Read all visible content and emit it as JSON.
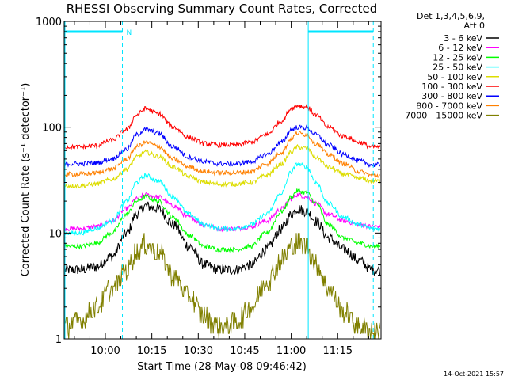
{
  "chart_data": {
    "type": "line",
    "title": "RHESSI Observing Summary Count Rates, Corrected",
    "xlabel": "Start Time (28-May-08 09:46:42)",
    "ylabel": "Corrected Count Rate (s⁻¹ detector⁻¹)",
    "y_scale": "log",
    "ylim": [
      1,
      1000
    ],
    "y_ticks": [
      {
        "value": 1,
        "label": "1"
      },
      {
        "value": 10,
        "label": "10"
      },
      {
        "value": 100,
        "label": "100"
      },
      {
        "value": 1000,
        "label": "1000"
      }
    ],
    "xlim": [
      "09:46:42",
      "11:29:00"
    ],
    "x_ticks": [
      "10:00",
      "10:15",
      "10:30",
      "10:45",
      "11:00",
      "11:15"
    ],
    "legend_header": [
      "Det 1,3,4,5,6,9,",
      "Att 0"
    ],
    "legend_placement": "right",
    "flags": {
      "night_marker_label": "N",
      "night_intervals": [
        [
          "09:46:42",
          "10:05:30"
        ],
        [
          "11:05:30",
          "11:26:30"
        ]
      ],
      "saa_line_value": 800
    },
    "x": [
      "09:47",
      "09:52",
      "09:57",
      "10:02",
      "10:07",
      "10:10",
      "10:13",
      "10:17",
      "10:22",
      "10:27",
      "10:32",
      "10:37",
      "10:42",
      "10:47",
      "10:52",
      "10:57",
      "11:00",
      "11:02",
      "11:05",
      "11:08",
      "11:12",
      "11:17",
      "11:22",
      "11:26"
    ],
    "series": [
      {
        "name": "3 - 6 keV",
        "color": "#000000",
        "values": [
          4.5,
          4.5,
          4.8,
          6,
          10,
          15,
          18,
          17,
          12,
          7.5,
          5,
          4.5,
          4.5,
          5,
          7,
          11,
          15,
          17,
          16,
          13,
          9,
          7,
          5.5,
          4.5
        ]
      },
      {
        "name": "6 - 12 keV",
        "color": "#ff00ff",
        "values": [
          11,
          11,
          11.5,
          13,
          17,
          21,
          23,
          22,
          18,
          14,
          12,
          11,
          11,
          11.5,
          13,
          17,
          21,
          23,
          22,
          19,
          15,
          13,
          12,
          11.5
        ]
      },
      {
        "name": "12 - 25 keV",
        "color": "#00ff00",
        "values": [
          7.5,
          7.5,
          8,
          10,
          15,
          20,
          22,
          20,
          14,
          9.5,
          7.5,
          7,
          7,
          7.5,
          10,
          16,
          22,
          25,
          24,
          19,
          12,
          9,
          8,
          7.5
        ]
      },
      {
        "name": "25 - 50 keV",
        "color": "#00ffff",
        "values": [
          10,
          10,
          11,
          13,
          20,
          30,
          35,
          31,
          22,
          15,
          12,
          11,
          11,
          12,
          15,
          24,
          38,
          45,
          42,
          30,
          19,
          14,
          12,
          11
        ]
      },
      {
        "name": "50 - 100 keV",
        "color": "#dddd00",
        "values": [
          28,
          28,
          29,
          32,
          40,
          52,
          58,
          53,
          42,
          34,
          30,
          29,
          29,
          30,
          35,
          45,
          58,
          65,
          63,
          52,
          42,
          36,
          33,
          31
        ]
      },
      {
        "name": "100 - 300 keV",
        "color": "#ff0000",
        "values": [
          65,
          65,
          67,
          75,
          95,
          130,
          150,
          135,
          100,
          80,
          70,
          68,
          68,
          72,
          85,
          115,
          150,
          160,
          155,
          130,
          100,
          82,
          72,
          65
        ]
      },
      {
        "name": "300 - 800 keV",
        "color": "#0000ff",
        "values": [
          45,
          45,
          46,
          50,
          62,
          85,
          95,
          88,
          65,
          52,
          47,
          45,
          45,
          47,
          55,
          72,
          95,
          100,
          98,
          85,
          68,
          55,
          48,
          44
        ]
      },
      {
        "name": "800 - 7000 keV",
        "color": "#ff8000",
        "values": [
          36,
          36,
          37,
          40,
          50,
          65,
          72,
          66,
          50,
          42,
          38,
          37,
          37,
          38,
          45,
          58,
          78,
          88,
          85,
          70,
          55,
          45,
          38,
          35
        ]
      },
      {
        "name": "7000 - 15000 keV",
        "color": "#808000",
        "values": [
          1.3,
          1.5,
          2,
          3,
          4.5,
          6.5,
          7.8,
          6.5,
          4,
          2.5,
          1.6,
          1.3,
          1.4,
          2,
          3.5,
          5.5,
          7.5,
          8,
          7.5,
          5,
          3,
          1.8,
          1.3,
          1.2
        ]
      }
    ]
  },
  "footer_timestamp": "14-Oct-2021 15:57"
}
